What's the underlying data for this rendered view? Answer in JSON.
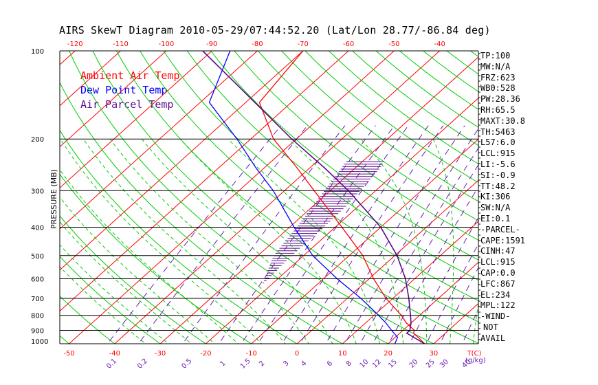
{
  "title": "AIRS SkewT Diagram 2010-05-29/07:44:52.20 (Lat/Lon 28.77/-86.84 deg)",
  "legend": [
    {
      "label": "Ambient Air Temp",
      "color": "#ff0000"
    },
    {
      "label": "Dew Point Temp",
      "color": "#0000ff"
    },
    {
      "label": "Air Parcel Temp",
      "color": "#5a0a8c"
    }
  ],
  "ylabel": "PRESSURE (MB)",
  "stats": [
    "TP:100",
    "MW:N/A",
    "FRZ:623",
    "WB0:528",
    "PW:28.36",
    "RH:65.5",
    "MAXT:30.8",
    "TH:5463",
    "L57:6.0",
    "LCL:915",
    "LI:-5.6",
    "SI:-0.9",
    "TT:48.2",
    "KI:306",
    "SW:N/A",
    "EI:0.1",
    "-PARCEL-",
    "CAPE:1591",
    "CINH:47",
    "LCL:915",
    "CAP:0.0",
    "LFC:867",
    "EL:234",
    "MPL:122",
    "-WIND-",
    "NOT",
    "AVAIL"
  ],
  "chart_data": {
    "type": "line",
    "y_scale": "log-pressure",
    "ylim": [
      1000,
      100
    ],
    "y_ticks": [
      "100",
      "200",
      "300",
      "400",
      "500",
      "600",
      "700",
      "800",
      "900",
      "1000"
    ],
    "x_bottom_ticks": [
      "-50",
      "-40",
      "-30",
      "-20",
      "-10",
      "0",
      "10",
      "20",
      "30"
    ],
    "x_bottom_unit": "T(C)",
    "x_top_ticks": [
      "-120",
      "-110",
      "-100",
      "-90",
      "-80",
      "-70",
      "-60",
      "-50",
      "-40"
    ],
    "mixing_ratio_labels": [
      "0.1",
      "0.2",
      "0.5",
      "1",
      "1.5",
      "2",
      "3",
      "4",
      "6",
      "8",
      "10",
      "12",
      "15",
      "20",
      "25",
      "30",
      "40"
    ],
    "mixing_ratio_unit": "(g/kg)",
    "colors": {
      "temp": "#ff0000",
      "dewpoint": "#0000ff",
      "parcel": "#5a0a8c",
      "dry_adiabat": "#00cc00",
      "moist_adiabat": "#00cc00",
      "isotherm": "#ff0000",
      "mixing_ratio": "#6a1ab0",
      "isobar": "#000000",
      "cape_hatch": "#5a0a8c"
    },
    "series": [
      {
        "name": "Ambient Air Temp",
        "points": [
          [
            1000,
            28.0
          ],
          [
            950,
            25.0
          ],
          [
            920,
            23.0
          ],
          [
            900,
            22.5
          ],
          [
            850,
            19.0
          ],
          [
            800,
            16.0
          ],
          [
            700,
            8.5
          ],
          [
            600,
            1.0
          ],
          [
            500,
            -7.0
          ],
          [
            400,
            -18.5
          ],
          [
            300,
            -33.5
          ],
          [
            250,
            -43.0
          ],
          [
            200,
            -55.0
          ],
          [
            150,
            -67.0
          ],
          [
            100,
            -70.0
          ]
        ]
      },
      {
        "name": "Dew Point Temp",
        "points": [
          [
            1000,
            21.5
          ],
          [
            950,
            20.5
          ],
          [
            900,
            17.5
          ],
          [
            850,
            14.5
          ],
          [
            800,
            11.0
          ],
          [
            700,
            3.0
          ],
          [
            600,
            -7.0
          ],
          [
            500,
            -18.0
          ],
          [
            400,
            -29.0
          ],
          [
            300,
            -42.5
          ],
          [
            250,
            -52.0
          ],
          [
            200,
            -63.0
          ],
          [
            150,
            -78.0
          ],
          [
            100,
            -86.0
          ]
        ]
      },
      {
        "name": "Air Parcel Temp",
        "points": [
          [
            1000,
            28.0
          ],
          [
            950,
            24.0
          ],
          [
            920,
            21.5
          ],
          [
            900,
            21.5
          ],
          [
            850,
            20.0
          ],
          [
            800,
            18.0
          ],
          [
            700,
            13.5
          ],
          [
            600,
            8.0
          ],
          [
            500,
            0.5
          ],
          [
            400,
            -10.0
          ],
          [
            300,
            -26.0
          ],
          [
            250,
            -37.0
          ],
          [
            200,
            -51.0
          ],
          [
            150,
            -68.0
          ],
          [
            100,
            -92.0
          ]
        ]
      }
    ]
  }
}
